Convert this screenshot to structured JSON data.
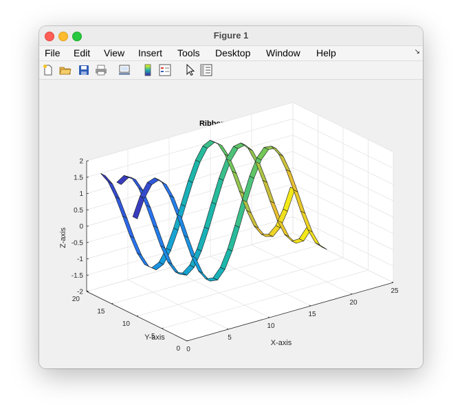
{
  "window": {
    "title": "Figure 1"
  },
  "menu": {
    "items": [
      "File",
      "Edit",
      "View",
      "Insert",
      "Tools",
      "Desktop",
      "Window",
      "Help"
    ]
  },
  "toolbar": {
    "buttons": [
      "new-figure-icon",
      "open-file-icon",
      "save-icon",
      "print-icon",
      "link-plot-icon",
      "colorbar-icon",
      "legend-icon",
      "edit-plot-arrow-icon",
      "property-inspector-icon"
    ]
  },
  "chart_data": {
    "type": "ribbon",
    "title": "Ribbon Plot Example",
    "xlabel": "X-axis",
    "ylabel": "Y-axis",
    "zlabel": "Z-axis",
    "x_ticks": [
      "0",
      "5",
      "10",
      "15",
      "20",
      "25"
    ],
    "y_ticks": [
      "0",
      "5",
      "10",
      "15",
      "20"
    ],
    "z_ticks": [
      "-2",
      "-1.5",
      "-1",
      "-0.5",
      "0",
      "0.5",
      "1",
      "1.5",
      "2"
    ],
    "xlim": [
      0,
      25
    ],
    "ylim": [
      0,
      20
    ],
    "zlim": [
      -2,
      2
    ],
    "grid": true,
    "colormap": "parula",
    "colors": {
      "ribbon_low": "#3e26a8",
      "ribbon_high": "#f9fb0e",
      "axes_bg": "#ffffff",
      "figure_bg": "#f0f0f0"
    }
  }
}
